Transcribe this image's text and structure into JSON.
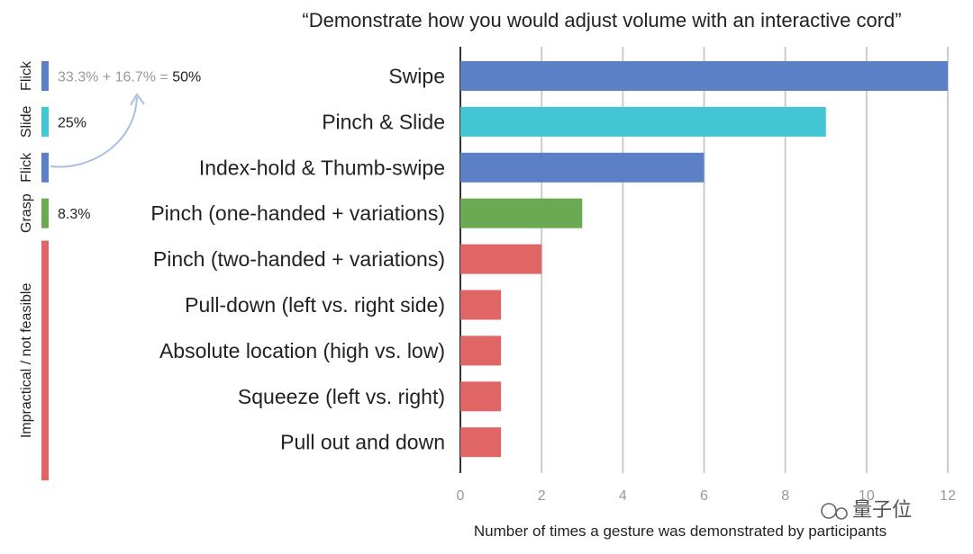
{
  "chart_data": {
    "type": "bar",
    "orientation": "horizontal",
    "title": "“Demonstrate how you would adjust volume with an interactive cord”",
    "xlabel": "Number of times a gesture was demonstrated by participants",
    "ylabel": "",
    "xlim": [
      0,
      12
    ],
    "xticks": [
      "0",
      "2",
      "4",
      "6",
      "8",
      "10",
      "12"
    ],
    "grid": true,
    "categories": [
      "Swipe",
      "Pinch & Slide",
      "Index-hold & Thumb-swipe",
      "Pinch (one-handed + variations)",
      "Pinch (two-handed + variations)",
      "Pull-down (left vs. right side)",
      "Absolute location (high vs. low)",
      "Squeeze (left vs. right)",
      "Pull out and down"
    ],
    "values": [
      12,
      9,
      6,
      3,
      2,
      1,
      1,
      1,
      1
    ],
    "bar_colors": [
      "#5b80c5",
      "#43c6d3",
      "#5b80c5",
      "#6aaa52",
      "#e06565",
      "#e06565",
      "#e06565",
      "#e06565",
      "#e06565"
    ],
    "groups": [
      {
        "name": "Flick",
        "pct_main": "33.3% + 16.7% = ",
        "pct_total": "50%",
        "color": "#5b80c5",
        "rows": [
          0
        ]
      },
      {
        "name": "Slide",
        "pct_main": "25%",
        "pct_total": "",
        "color": "#43c6d3",
        "rows": [
          1
        ]
      },
      {
        "name": "Flick",
        "pct_main": "",
        "pct_total": "",
        "color": "#5b80c5",
        "rows": [
          2
        ]
      },
      {
        "name": "Grasp",
        "pct_main": "8.3%",
        "pct_total": "",
        "color": "#6aaa52",
        "rows": [
          3
        ]
      },
      {
        "name": "Impractical / not feasible",
        "pct_main": "",
        "pct_total": "",
        "color": "#e06565",
        "rows": [
          4,
          5,
          6,
          7,
          8
        ]
      }
    ],
    "watermark": "量子位"
  }
}
